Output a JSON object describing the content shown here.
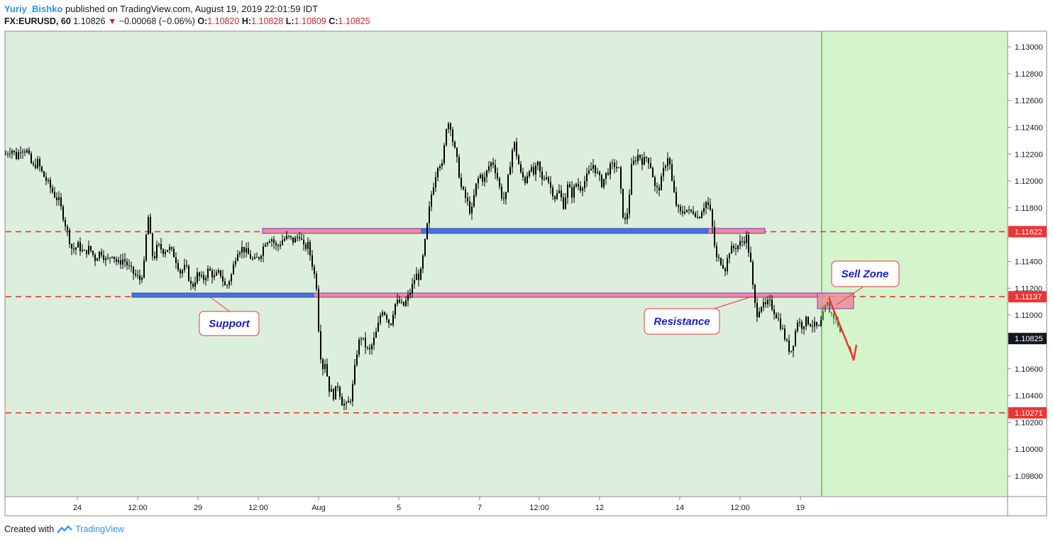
{
  "header": {
    "author": "Yuriy_Bishko",
    "published_text": " published on TradingView.com, August 19, 2019 22:01:59 IDT",
    "symbol": "FX:EURUSD, 60",
    "last": "1.10826",
    "change": "−0.00068 (−0.06%)",
    "o_label": "O:",
    "o_value": "1.10820",
    "h_label": "H:",
    "h_value": "1.10828",
    "l_label": "L:",
    "l_value": "1.10809",
    "c_label": "C:",
    "c_value": "1.10825"
  },
  "footer": {
    "created_with": "Created with",
    "brand": "TradingView"
  },
  "colors": {
    "bg_history": "#dcefdc",
    "bg_future": "#d4f5cc",
    "level_line": "#ef3434",
    "support_box": "#4a6fe0",
    "resistance_box": "#f08a9a",
    "callout_text": "#1a1ad6",
    "arrow": "#ef3434"
  },
  "chart_data": {
    "type": "candlestick",
    "symbol": "EURUSD",
    "interval": "60",
    "ylim": [
      1.0966,
      1.1315
    ],
    "y_ticks": [
      "1.13000",
      "1.12800",
      "1.12600",
      "1.12400",
      "1.12200",
      "1.12000",
      "1.11800",
      "1.11400",
      "1.11200",
      "1.11000",
      "1.10600",
      "1.10400",
      "1.10200",
      "1.10000",
      "1.09800"
    ],
    "x_ticks": [
      "24",
      "12:00",
      "29",
      "12:00",
      "Aug",
      "5",
      "7",
      "12:00",
      "12",
      "14",
      "12:00",
      "19"
    ],
    "levels": [
      {
        "value": 1.11622,
        "label": "1.11622"
      },
      {
        "value": 1.11137,
        "label": "1.11137"
      },
      {
        "value": 1.10271,
        "label": "1.10271"
      }
    ],
    "last_price_label": "1.10825",
    "path": [
      [
        0,
        1.122
      ],
      [
        8,
        1.1224
      ],
      [
        15,
        1.1218
      ],
      [
        22,
        1.1225
      ],
      [
        30,
        1.1222
      ],
      [
        38,
        1.121
      ],
      [
        45,
        1.1214
      ],
      [
        52,
        1.1205
      ],
      [
        60,
        1.1198
      ],
      [
        68,
        1.119
      ],
      [
        75,
        1.1185
      ],
      [
        82,
        1.1172
      ],
      [
        88,
        1.116
      ],
      [
        94,
        1.1148
      ],
      [
        102,
        1.1152
      ],
      [
        110,
        1.1146
      ],
      [
        118,
        1.115
      ],
      [
        126,
        1.1142
      ],
      [
        134,
        1.1148
      ],
      [
        142,
        1.114
      ],
      [
        150,
        1.1146
      ],
      [
        158,
        1.1138
      ],
      [
        166,
        1.1142
      ],
      [
        174,
        1.1135
      ],
      [
        182,
        1.113
      ],
      [
        190,
        1.1126
      ],
      [
        196,
        1.114
      ],
      [
        200,
        1.1178
      ],
      [
        204,
        1.1158
      ],
      [
        208,
        1.114
      ],
      [
        214,
        1.1152
      ],
      [
        222,
        1.1148
      ],
      [
        230,
        1.115
      ],
      [
        238,
        1.1144
      ],
      [
        246,
        1.1132
      ],
      [
        254,
        1.1136
      ],
      [
        262,
        1.112
      ],
      [
        270,
        1.113
      ],
      [
        278,
        1.1126
      ],
      [
        286,
        1.1134
      ],
      [
        294,
        1.1128
      ],
      [
        302,
        1.1132
      ],
      [
        310,
        1.112
      ],
      [
        318,
        1.113
      ],
      [
        326,
        1.1148
      ],
      [
        334,
        1.115
      ],
      [
        342,
        1.1145
      ],
      [
        350,
        1.114
      ],
      [
        358,
        1.1144
      ],
      [
        366,
        1.1155
      ],
      [
        374,
        1.1158
      ],
      [
        382,
        1.115
      ],
      [
        390,
        1.1156
      ],
      [
        398,
        1.1158
      ],
      [
        406,
        1.1155
      ],
      [
        414,
        1.116
      ],
      [
        420,
        1.115
      ],
      [
        426,
        1.1152
      ],
      [
        432,
        1.1138
      ],
      [
        438,
        1.1122
      ],
      [
        442,
        1.108
      ],
      [
        446,
        1.106
      ],
      [
        450,
        1.1065
      ],
      [
        456,
        1.1045
      ],
      [
        462,
        1.104
      ],
      [
        468,
        1.1048
      ],
      [
        474,
        1.1035
      ],
      [
        480,
        1.1032
      ],
      [
        486,
        1.1038
      ],
      [
        490,
        1.105
      ],
      [
        494,
        1.107
      ],
      [
        500,
        1.1085
      ],
      [
        506,
        1.1078
      ],
      [
        512,
        1.1072
      ],
      [
        518,
        1.108
      ],
      [
        524,
        1.109
      ],
      [
        530,
        1.1105
      ],
      [
        536,
        1.11
      ],
      [
        542,
        1.1092
      ],
      [
        548,
        1.1108
      ],
      [
        554,
        1.111
      ],
      [
        560,
        1.1106
      ],
      [
        566,
        1.1112
      ],
      [
        572,
        1.112
      ],
      [
        578,
        1.113
      ],
      [
        584,
        1.1128
      ],
      [
        590,
        1.115
      ],
      [
        596,
        1.1175
      ],
      [
        600,
        1.119
      ],
      [
        604,
        1.12
      ],
      [
        610,
        1.1215
      ],
      [
        616,
        1.121
      ],
      [
        620,
        1.124
      ],
      [
        626,
        1.1245
      ],
      [
        630,
        1.123
      ],
      [
        636,
        1.1215
      ],
      [
        642,
        1.1195
      ],
      [
        650,
        1.1185
      ],
      [
        656,
        1.1175
      ],
      [
        662,
        1.1195
      ],
      [
        668,
        1.1205
      ],
      [
        674,
        1.12
      ],
      [
        680,
        1.121
      ],
      [
        686,
        1.1215
      ],
      [
        692,
        1.1205
      ],
      [
        698,
        1.119
      ],
      [
        704,
        1.1185
      ],
      [
        710,
        1.121
      ],
      [
        716,
        1.123
      ],
      [
        720,
        1.122
      ],
      [
        726,
        1.1205
      ],
      [
        732,
        1.12
      ],
      [
        738,
        1.121
      ],
      [
        744,
        1.1205
      ],
      [
        750,
        1.1212
      ],
      [
        756,
        1.12
      ],
      [
        762,
        1.1205
      ],
      [
        768,
        1.1195
      ],
      [
        774,
        1.1188
      ],
      [
        780,
        1.1192
      ],
      [
        786,
        1.1182
      ],
      [
        792,
        1.1196
      ],
      [
        798,
        1.119
      ],
      [
        804,
        1.1198
      ],
      [
        810,
        1.1195
      ],
      [
        816,
        1.12
      ],
      [
        822,
        1.1206
      ],
      [
        828,
        1.1212
      ],
      [
        834,
        1.1205
      ],
      [
        840,
        1.1198
      ],
      [
        846,
        1.1205
      ],
      [
        852,
        1.121
      ],
      [
        858,
        1.1212
      ],
      [
        864,
        1.1208
      ],
      [
        870,
        1.1175
      ],
      [
        874,
        1.1168
      ],
      [
        878,
        1.1185
      ],
      [
        882,
        1.121
      ],
      [
        886,
        1.1215
      ],
      [
        892,
        1.122
      ],
      [
        898,
        1.1214
      ],
      [
        904,
        1.1218
      ],
      [
        910,
        1.121
      ],
      [
        916,
        1.1192
      ],
      [
        922,
        1.1196
      ],
      [
        928,
        1.121
      ],
      [
        934,
        1.122
      ],
      [
        940,
        1.1195
      ],
      [
        946,
        1.118
      ],
      [
        952,
        1.1175
      ],
      [
        958,
        1.118
      ],
      [
        964,
        1.1176
      ],
      [
        970,
        1.1178
      ],
      [
        976,
        1.1172
      ],
      [
        982,
        1.118
      ],
      [
        988,
        1.1185
      ],
      [
        994,
        1.1175
      ],
      [
        998,
        1.1155
      ],
      [
        1002,
        1.1142
      ],
      [
        1008,
        1.114
      ],
      [
        1014,
        1.1135
      ],
      [
        1020,
        1.1148
      ],
      [
        1026,
        1.115
      ],
      [
        1032,
        1.1152
      ],
      [
        1038,
        1.1155
      ],
      [
        1044,
        1.1158
      ],
      [
        1050,
        1.1138
      ],
      [
        1054,
        1.1115
      ],
      [
        1058,
        1.11
      ],
      [
        1064,
        1.1108
      ],
      [
        1070,
        1.1106
      ],
      [
        1076,
        1.111
      ],
      [
        1082,
        1.1104
      ],
      [
        1088,
        1.1098
      ],
      [
        1094,
        1.109
      ],
      [
        1100,
        1.108
      ],
      [
        1106,
        1.1072
      ],
      [
        1110,
        1.108
      ],
      [
        1116,
        1.1096
      ],
      [
        1122,
        1.1092
      ],
      [
        1128,
        1.1096
      ],
      [
        1134,
        1.1094
      ],
      [
        1140,
        1.1092
      ],
      [
        1146,
        1.109
      ],
      [
        1150,
        1.1096
      ],
      [
        1154,
        1.1104
      ],
      [
        1158,
        1.1108
      ],
      [
        1162,
        1.1102
      ],
      [
        1168,
        1.1098
      ],
      [
        1174,
        1.1092
      ],
      [
        1178,
        1.10825
      ]
    ],
    "annotations": {
      "support": "Support",
      "resistance": "Resistance",
      "sell_zone": "Sell Zone"
    }
  }
}
